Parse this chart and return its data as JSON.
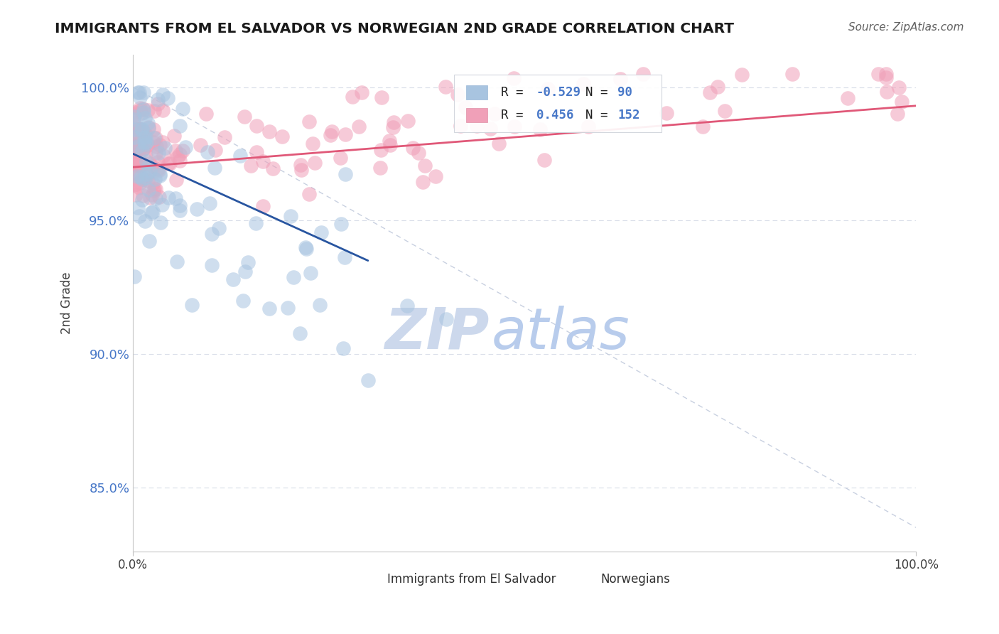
{
  "title": "IMMIGRANTS FROM EL SALVADOR VS NORWEGIAN 2ND GRADE CORRELATION CHART",
  "source": "Source: ZipAtlas.com",
  "ylabel": "2nd Grade",
  "ylabel_ticks": [
    "85.0%",
    "90.0%",
    "95.0%",
    "100.0%"
  ],
  "ylabel_tick_vals": [
    0.85,
    0.9,
    0.95,
    1.0
  ],
  "xmin": 0.0,
  "xmax": 1.0,
  "ymin": 0.826,
  "ymax": 1.012,
  "blue_color": "#a8c4e0",
  "pink_color": "#f0a0b8",
  "blue_line_color": "#2855a0",
  "pink_line_color": "#e05878",
  "ref_line_color": "#c8d0e0",
  "background_color": "#ffffff",
  "grid_color": "#d8dce8",
  "watermark_zip_color": "#ccd8ec",
  "watermark_atlas_color": "#b8ccec"
}
